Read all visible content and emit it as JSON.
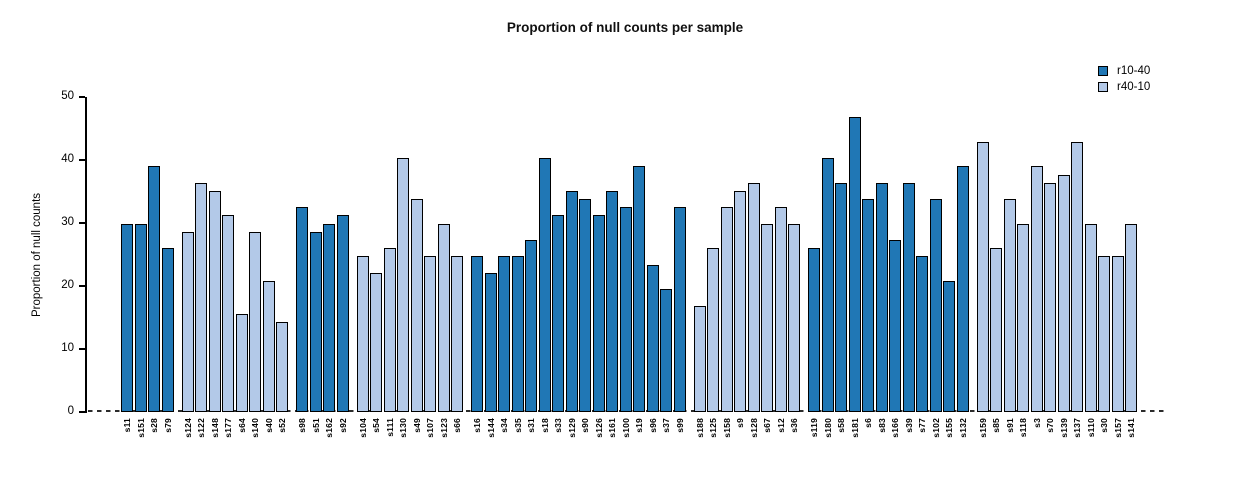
{
  "title": "Proportion of null counts per sample",
  "legend": {
    "items": [
      {
        "label": "r10-40",
        "color": "#2077B5"
      },
      {
        "label": "r40-10",
        "color": "#B3C9E8"
      }
    ]
  },
  "chart_data": {
    "type": "bar",
    "title": "Proportion of null counts per sample",
    "xlabel": "",
    "ylabel": "Proportion of null counts",
    "ylim": [
      0,
      50
    ],
    "yticks": [
      0,
      10,
      20,
      30,
      40,
      50
    ],
    "grid": false,
    "legend_position": "top-right",
    "zero_line": "dashed",
    "series": [
      {
        "name": "r10-40",
        "color": "#2077B5"
      },
      {
        "name": "r40-10",
        "color": "#B3C9E8"
      }
    ],
    "groups": [
      {
        "series": "r10-40",
        "bars": [
          {
            "label": "s11",
            "value": 29.9
          },
          {
            "label": "s151",
            "value": 29.9
          },
          {
            "label": "s28",
            "value": 39.0
          },
          {
            "label": "s79",
            "value": 26.0
          }
        ]
      },
      {
        "series": "r40-10",
        "bars": [
          {
            "label": "s124",
            "value": 28.6
          },
          {
            "label": "s122",
            "value": 36.4
          },
          {
            "label": "s148",
            "value": 35.1
          },
          {
            "label": "s177",
            "value": 31.2
          },
          {
            "label": "s64",
            "value": 15.6
          },
          {
            "label": "s140",
            "value": 28.6
          },
          {
            "label": "s40",
            "value": 20.8
          },
          {
            "label": "s52",
            "value": 14.3
          }
        ]
      },
      {
        "series": "r10-40",
        "bars": [
          {
            "label": "s98",
            "value": 32.5
          },
          {
            "label": "s51",
            "value": 28.6
          },
          {
            "label": "s162",
            "value": 29.9
          },
          {
            "label": "s92",
            "value": 31.2
          }
        ]
      },
      {
        "series": "r40-10",
        "bars": [
          {
            "label": "s104",
            "value": 24.7
          },
          {
            "label": "s54",
            "value": 22.1
          },
          {
            "label": "s111",
            "value": 26.0
          },
          {
            "label": "s130",
            "value": 40.3
          },
          {
            "label": "s49",
            "value": 33.8
          },
          {
            "label": "s107",
            "value": 24.7
          },
          {
            "label": "s123",
            "value": 29.9
          },
          {
            "label": "s66",
            "value": 24.7
          }
        ]
      },
      {
        "series": "r10-40",
        "bars": [
          {
            "label": "s16",
            "value": 24.7
          },
          {
            "label": "s144",
            "value": 22.1
          },
          {
            "label": "s34",
            "value": 24.7
          },
          {
            "label": "s35",
            "value": 24.7
          },
          {
            "label": "s31",
            "value": 27.3
          },
          {
            "label": "s18",
            "value": 40.3
          },
          {
            "label": "s33",
            "value": 31.2
          },
          {
            "label": "s129",
            "value": 35.1
          },
          {
            "label": "s90",
            "value": 33.8
          },
          {
            "label": "s126",
            "value": 31.2
          },
          {
            "label": "s161",
            "value": 35.1
          },
          {
            "label": "s100",
            "value": 32.5
          },
          {
            "label": "s19",
            "value": 39.0
          },
          {
            "label": "s96",
            "value": 23.4
          },
          {
            "label": "s37",
            "value": 19.5
          },
          {
            "label": "s99",
            "value": 32.5
          }
        ]
      },
      {
        "series": "r40-10",
        "bars": [
          {
            "label": "s188",
            "value": 16.9
          },
          {
            "label": "s125",
            "value": 26.0
          },
          {
            "label": "s158",
            "value": 32.5
          },
          {
            "label": "s9",
            "value": 35.1
          },
          {
            "label": "s128",
            "value": 36.4
          },
          {
            "label": "s67",
            "value": 29.9
          },
          {
            "label": "s12",
            "value": 32.5
          },
          {
            "label": "s36",
            "value": 29.9
          }
        ]
      },
      {
        "series": "r10-40",
        "bars": [
          {
            "label": "s119",
            "value": 26.0
          },
          {
            "label": "s180",
            "value": 40.3
          },
          {
            "label": "s58",
            "value": 36.4
          },
          {
            "label": "s181",
            "value": 46.8
          },
          {
            "label": "s6",
            "value": 33.8
          },
          {
            "label": "s83",
            "value": 36.4
          },
          {
            "label": "s166",
            "value": 27.3
          },
          {
            "label": "s39",
            "value": 36.4
          },
          {
            "label": "s77",
            "value": 24.7
          },
          {
            "label": "s102",
            "value": 33.8
          },
          {
            "label": "s155",
            "value": 20.8
          },
          {
            "label": "s132",
            "value": 39.0
          }
        ]
      },
      {
        "series": "r40-10",
        "bars": [
          {
            "label": "s159",
            "value": 42.9
          },
          {
            "label": "s85",
            "value": 26.0
          },
          {
            "label": "s91",
            "value": 33.8
          },
          {
            "label": "s118",
            "value": 29.9
          },
          {
            "label": "s3",
            "value": 39.0
          },
          {
            "label": "s70",
            "value": 36.4
          },
          {
            "label": "s139",
            "value": 37.7
          },
          {
            "label": "s137",
            "value": 42.9
          },
          {
            "label": "s110",
            "value": 29.9
          },
          {
            "label": "s30",
            "value": 24.7
          },
          {
            "label": "s157",
            "value": 24.7
          },
          {
            "label": "s141",
            "value": 29.9
          }
        ]
      }
    ]
  }
}
